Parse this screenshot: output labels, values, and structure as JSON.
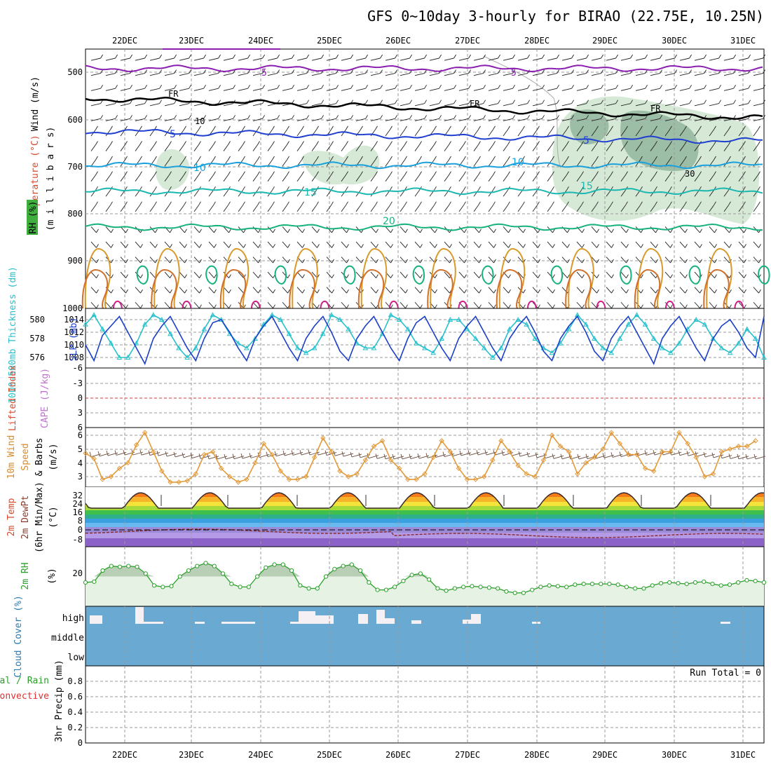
{
  "title": "GFS 0~10day 3-hourly for BIRAO (22.75E, 10.25N)",
  "date_labels": [
    "22DEC",
    "23DEC",
    "24DEC",
    "25DEC",
    "26DEC",
    "27DEC",
    "28DEC",
    "29DEC",
    "30DEC",
    "31DEC"
  ],
  "colors": {
    "grid": "#9a9a9a",
    "rh_fill": "#cfe5cf",
    "rh_dark": "#7f9f86",
    "cloud": "#6aaad2",
    "purple": "#8a1fb0",
    "blue": "#1f3fd0",
    "cyan": "#1aa0dc",
    "teal": "#1ab8b0",
    "green": "#17b27a",
    "orange": "#d99a2a",
    "slp": "#1a3fc8",
    "thk": "#27c0cc",
    "wind": "#e29a3a",
    "rh2": "#2aa02a"
  },
  "panels": {
    "upper_air": {
      "ylabel_wind": "Wind (m/s)",
      "ylabel_temp": "Temperature (°C)",
      "ylabel_rh": "RH (%)",
      "ylabel_p": "(m i l l i b a r s)",
      "yticks": [
        "500",
        "600",
        "700",
        "800",
        "900",
        "1000"
      ],
      "contour_labels": {
        "t5": "5",
        "fr": "FR",
        "m5": "5",
        "m10": "10",
        "m15": "15",
        "m20": "20",
        "rh10": "10",
        "rh30": "30"
      },
      "pressure_lines": [
        {
          "name": "-5",
          "color": "purple",
          "p": 492
        },
        {
          "name": "FR",
          "color": "black",
          "p": 555
        },
        {
          "name": "5",
          "color": "blue",
          "p": 625
        },
        {
          "name": "10",
          "color": "cyan",
          "p": 697
        },
        {
          "name": "15",
          "color": "teal",
          "p": 752
        },
        {
          "name": "20",
          "color": "green",
          "p": 828
        }
      ]
    },
    "slp_thickness": {
      "ylabel_thk": "1000-500mb Thickness (dm)",
      "ylabel_slp": "SLP (mb)",
      "yticks_left": [
        "580",
        "578",
        "576"
      ],
      "yticks_right": [
        "1014",
        "1012",
        "1010",
        "1008"
      ],
      "slp_series": [
        1010,
        1007.5,
        1011.5,
        1013,
        1014.5,
        1012,
        1009.5,
        1007,
        1011,
        1013,
        1014.5,
        1012,
        1009.5,
        1007.5,
        1011,
        1013.5,
        1014,
        1012,
        1009.5,
        1007.5,
        1011,
        1013,
        1014.5,
        1012,
        1009.5,
        1007.5,
        1011,
        1013,
        1014.5,
        1012,
        1009,
        1007.5,
        1011,
        1013,
        1014.5,
        1012,
        1009.5,
        1007.5,
        1011,
        1013.5,
        1014.5,
        1012,
        1009.5,
        1007.5,
        1011,
        1013,
        1014.5,
        1012,
        1009.5,
        1007.5,
        1011,
        1013,
        1014.5,
        1012,
        1009,
        1007.5,
        1011,
        1013,
        1014.5,
        1012,
        1009,
        1007.5,
        1011,
        1013,
        1014.5,
        1012,
        1009.5,
        1007,
        1011,
        1013,
        1014.5,
        1012,
        1009.5,
        1007.5,
        1011,
        1013,
        1014,
        1012,
        1009.5,
        1008,
        1014.5
      ],
      "thk_series": [
        579.5,
        580.5,
        579,
        577.5,
        576,
        576,
        577.5,
        579.5,
        580.5,
        580,
        578.5,
        577,
        576,
        577,
        579,
        580.5,
        580,
        578.5,
        577.5,
        577,
        578,
        579.5,
        580.5,
        580,
        578.5,
        577,
        576.5,
        577,
        578.5,
        580.5,
        580,
        579,
        577.5,
        577,
        577,
        578.5,
        580.5,
        580,
        579,
        577.5,
        577,
        576.5,
        578,
        580,
        580,
        579,
        578,
        577,
        576,
        577,
        579,
        580,
        579.5,
        578,
        577,
        576.5,
        577.5,
        579,
        580.5,
        579.5,
        578,
        577,
        576.5,
        578,
        579.5,
        580.5,
        579.5,
        578,
        577,
        576.5,
        577.5,
        579,
        580,
        579.5,
        578,
        577,
        576.5,
        577.5,
        579,
        578,
        576
      ]
    },
    "lifted_cape": {
      "ylabel_li": "Lifted Index",
      "ylabel_cape": "CAPE (J/kg)",
      "yticks": [
        "-6",
        "-3",
        "0",
        "3",
        "6"
      ]
    },
    "wind10m": {
      "ylabel_a": "10m Wind",
      "ylabel_b": "Speed",
      "ylabel_c": "& Barbs",
      "ylabel_d": "(m/s)",
      "yticks": [
        "6",
        "5",
        "4",
        "3"
      ],
      "series": [
        4.7,
        4.3,
        2.8,
        3.0,
        3.6,
        4.0,
        5.3,
        6.2,
        4.8,
        3.4,
        2.6,
        2.6,
        2.7,
        3.2,
        4.6,
        4.8,
        3.6,
        3.0,
        2.6,
        2.8,
        4.0,
        5.4,
        4.6,
        3.4,
        2.8,
        2.8,
        3.0,
        4.4,
        5.8,
        4.8,
        3.4,
        3.0,
        3.2,
        4.2,
        5.2,
        5.6,
        4.2,
        3.6,
        2.8,
        2.8,
        3.2,
        4.4,
        5.6,
        4.8,
        3.6,
        2.8,
        2.8,
        3.0,
        4.2,
        5.6,
        4.8,
        3.8,
        3.2,
        3.0,
        4.2,
        6.0,
        5.2,
        4.8,
        3.2,
        4.0,
        4.4,
        5.0,
        6.2,
        5.4,
        4.6,
        4.6,
        3.6,
        3.4,
        4.8,
        4.8,
        6.2,
        5.4,
        4.4,
        3.0,
        3.2,
        4.8,
        5.0,
        5.2,
        5.2,
        5.6
      ]
    },
    "temp2m": {
      "ylabel_a": "2m Temp",
      "ylabel_b": "2m DewPt",
      "ylabel_c": "(6hr Min/Max)",
      "ylabel_d": "(°C)",
      "yticks": [
        "32",
        "24",
        "16",
        "8",
        "0",
        "-8"
      ]
    },
    "rh2m": {
      "ylabel": "2m RH",
      "unit": "(%)",
      "yticks": [
        "20"
      ],
      "series": [
        16,
        16.5,
        24,
        27,
        26.5,
        27,
        26.5,
        22,
        14,
        13,
        13.5,
        20,
        24,
        27,
        29,
        27,
        22,
        15,
        13,
        13,
        20,
        26,
        28,
        28,
        24,
        14,
        12,
        12,
        20,
        25,
        27,
        28,
        24,
        16,
        11,
        11,
        13,
        17,
        21,
        22,
        18,
        12,
        10.5,
        12,
        13,
        13.5,
        13,
        12.5,
        12,
        10,
        9,
        9,
        11,
        13,
        14,
        13.5,
        13,
        14.5,
        15,
        15,
        15,
        15,
        14.5,
        13,
        12,
        12,
        14,
        15.5,
        16,
        15.5,
        15,
        16,
        16.5,
        15,
        14,
        14.5,
        16,
        17.5,
        17,
        16
      ]
    },
    "cloud": {
      "ylabel": "Cloud Cover (%)",
      "yticks": [
        "high",
        "middle",
        "low"
      ]
    },
    "precip": {
      "ylabel_a": "Total / Rain",
      "ylabel_b": "Convective",
      "ylabel_c": "3hr Precip (mm)",
      "yticks": [
        "0.8",
        "0.6",
        "0.4",
        "0.2",
        "0"
      ],
      "run_total": "Run Total = 0"
    }
  },
  "chart_data": [
    {
      "type": "line",
      "title": "GFS 0~10day 3-hourly for BIRAO (22.75E, 10.25N)",
      "panel": "SLP (mb)",
      "ylim": [
        1006,
        1016
      ],
      "x": [
        "22DEC",
        "23DEC",
        "24DEC",
        "25DEC",
        "26DEC",
        "27DEC",
        "28DEC",
        "29DEC",
        "30DEC",
        "31DEC"
      ]
    },
    {
      "type": "line",
      "panel": "10m Wind Speed (m/s)",
      "ylim": [
        2.2,
        6.6
      ]
    },
    {
      "type": "line",
      "panel": "2m RH (%)",
      "ylim": [
        0,
        40
      ]
    },
    {
      "type": "bar",
      "panel": "3hr Precip (mm)",
      "ylim": [
        0,
        1
      ],
      "values_all": 0,
      "run_total": "0"
    }
  ]
}
